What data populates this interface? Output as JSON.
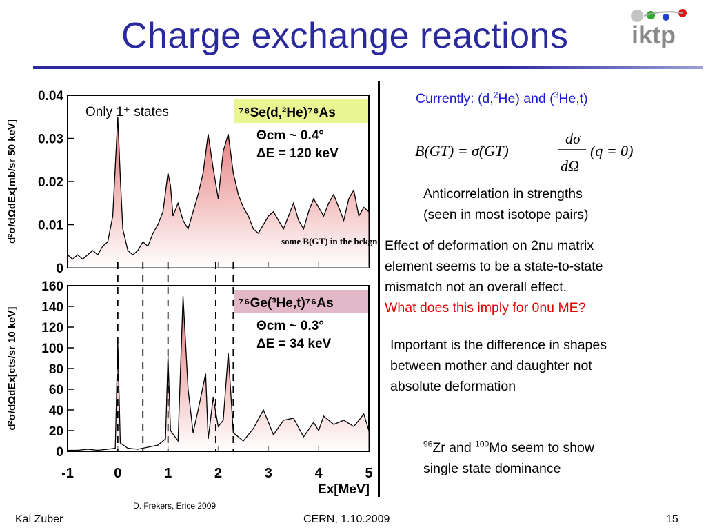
{
  "slide": {
    "title": "Charge exchange reactions",
    "logo_text": "iktp",
    "footer_left": "Kai Zuber",
    "footer_center": "CERN, 1.10.2009",
    "footer_right": "15",
    "credit": "D. Frekers, Erice 2009"
  },
  "text": {
    "currently_prefix": "Currently: (d,",
    "currently_sup1": "2",
    "currently_mid": "He) and (",
    "currently_sup2": "3",
    "currently_suffix": "He,t)",
    "anticorr_1": "Anticorrelation in strengths",
    "anticorr_2": "(seen in most isotope pairs)",
    "deform_1": "Effect of deformation on 2nu matrix",
    "deform_2": "element seems to be a state-to-state",
    "deform_3": "mismatch not an overall effect.",
    "deform_question": "What does this imply for 0nu ME?",
    "shape_1": "Important is the difference in shapes",
    "shape_2": "between mother and daughter not",
    "shape_3": "absolute deformation",
    "zr_sup": "96",
    "zr_text": "Zr and ",
    "mo_sup": "100",
    "mo_text": "Mo seem to show",
    "single_text": "single state dominance"
  },
  "formula": {
    "lhs": "B(GT) = σ̂(GT)",
    "numerator": "dσ",
    "denominator": "dΩ",
    "rhs": "(q = 0)"
  },
  "chart_data": [
    {
      "type": "line",
      "panel": "top",
      "reaction": "⁷⁶Se(d,²He)⁷⁶As",
      "theta": "Θcm ~ 0.4°",
      "delta_e": "ΔE = 120 keV",
      "note": "Only 1⁺ states",
      "annotation": "some B(GT) in the bckgnd",
      "ylabel": "d²σ/dΩdEx[mb/sr 50 keV]",
      "ylim": [
        0,
        0.04
      ],
      "yticks": [
        "0",
        "0.01",
        "0.02",
        "0.03",
        "0.04"
      ],
      "xlim": [
        -1,
        5
      ],
      "x": [
        -1.0,
        -0.9,
        -0.8,
        -0.7,
        -0.6,
        -0.5,
        -0.4,
        -0.3,
        -0.2,
        -0.1,
        0.0,
        0.05,
        0.1,
        0.2,
        0.3,
        0.4,
        0.5,
        0.6,
        0.7,
        0.8,
        0.9,
        1.0,
        1.05,
        1.1,
        1.2,
        1.3,
        1.4,
        1.5,
        1.6,
        1.7,
        1.8,
        1.9,
        2.0,
        2.1,
        2.2,
        2.3,
        2.4,
        2.5,
        2.6,
        2.7,
        2.8,
        2.9,
        3.0,
        3.1,
        3.2,
        3.3,
        3.4,
        3.5,
        3.6,
        3.7,
        3.8,
        3.9,
        4.0,
        4.1,
        4.2,
        4.3,
        4.4,
        4.5,
        4.6,
        4.7,
        4.8,
        4.9,
        5.0
      ],
      "y": [
        0.003,
        0.002,
        0.003,
        0.002,
        0.003,
        0.004,
        0.003,
        0.005,
        0.006,
        0.012,
        0.035,
        0.021,
        0.009,
        0.004,
        0.003,
        0.004,
        0.006,
        0.005,
        0.008,
        0.01,
        0.013,
        0.022,
        0.019,
        0.012,
        0.015,
        0.011,
        0.009,
        0.013,
        0.017,
        0.022,
        0.031,
        0.023,
        0.016,
        0.027,
        0.031,
        0.022,
        0.017,
        0.014,
        0.012,
        0.009,
        0.008,
        0.01,
        0.012,
        0.013,
        0.011,
        0.009,
        0.012,
        0.015,
        0.011,
        0.009,
        0.013,
        0.016,
        0.014,
        0.012,
        0.015,
        0.017,
        0.014,
        0.011,
        0.016,
        0.018,
        0.012,
        0.014,
        0.013
      ]
    },
    {
      "type": "line",
      "panel": "bottom",
      "reaction": "⁷⁶Ge(³He,t)⁷⁶As",
      "theta": "Θcm ~ 0.3°",
      "delta_e": "ΔE = 34 keV",
      "ylabel": "d²σ/dΩdEx[cts/sr 10 keV]",
      "xlabel": "Ex[MeV]",
      "ylim": [
        0,
        160
      ],
      "yticks": [
        "0",
        "20",
        "40",
        "60",
        "80",
        "100",
        "120",
        "140",
        "160"
      ],
      "xlim": [
        -1,
        5
      ],
      "xticks": [
        "-1",
        "0",
        "1",
        "2",
        "3",
        "4",
        "5"
      ],
      "x": [
        -1.0,
        -0.8,
        -0.6,
        -0.4,
        -0.2,
        -0.05,
        0.0,
        0.05,
        0.2,
        0.4,
        0.6,
        0.8,
        0.95,
        1.0,
        1.05,
        1.2,
        1.3,
        1.4,
        1.5,
        1.6,
        1.75,
        1.8,
        1.9,
        2.0,
        2.1,
        2.2,
        2.3,
        2.5,
        2.7,
        2.9,
        3.1,
        3.3,
        3.5,
        3.7,
        3.9,
        4.0,
        4.1,
        4.3,
        4.5,
        4.7,
        4.9,
        5.0
      ],
      "y": [
        1,
        1,
        2,
        1,
        2,
        3,
        105,
        8,
        3,
        2,
        4,
        6,
        12,
        92,
        20,
        10,
        150,
        60,
        18,
        40,
        75,
        12,
        52,
        24,
        30,
        95,
        18,
        10,
        22,
        40,
        16,
        30,
        32,
        14,
        28,
        20,
        34,
        26,
        30,
        24,
        36,
        20
      ]
    }
  ]
}
